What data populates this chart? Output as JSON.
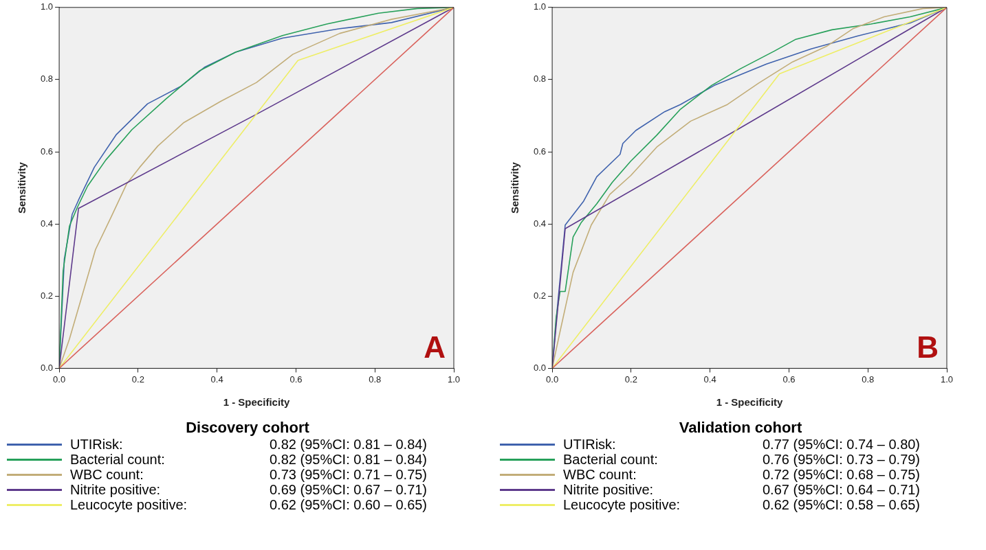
{
  "chart_data": [
    {
      "type": "line",
      "title": "A",
      "xlabel": "1 - Specificity",
      "ylabel": "Sensitivity",
      "legend_title": "Discovery cohort",
      "legend": "bottom",
      "grid": false,
      "marker": "none",
      "xlim": [
        0,
        1
      ],
      "ylim": [
        0,
        1
      ],
      "xticks": [
        {
          "value": 0,
          "label": "0.0"
        },
        {
          "value": 0.2,
          "label": "0.2"
        },
        {
          "value": 0.4,
          "label": "0.4"
        },
        {
          "value": 0.6,
          "label": "0.6"
        },
        {
          "value": 0.8,
          "label": "0.8"
        },
        {
          "value": 1,
          "label": "1.0"
        }
      ],
      "yticks": [
        {
          "value": 0,
          "label": "0.0"
        },
        {
          "value": 0.2,
          "label": "0.2"
        },
        {
          "value": 0.4,
          "label": "0.4"
        },
        {
          "value": 0.6,
          "label": "0.6"
        },
        {
          "value": 0.8,
          "label": "0.8"
        },
        {
          "value": 1,
          "label": "1.0"
        }
      ],
      "annotations": [
        "0.82 (95%CI: 0.81 – 0.84)",
        "0.82 (95%CI: 0.81 – 0.84)",
        "0.73 (95%CI: 0.71 – 0.75)",
        "0.69 (95%CI: 0.67 – 0.71)",
        "0.62 (95%CI: 0.60 – 0.65)"
      ],
      "series": [
        {
          "name": "UTIRisk:",
          "color": "#3f62ad",
          "x": [
            0,
            0.013,
            0.033,
            0.049,
            0.089,
            0.145,
            0.224,
            0.309,
            0.368,
            0.447,
            0.566,
            0.711,
            0.842,
            1
          ],
          "values": [
            0,
            0.303,
            0.427,
            0.466,
            0.557,
            0.648,
            0.733,
            0.782,
            0.834,
            0.876,
            0.915,
            0.941,
            0.958,
            1
          ]
        },
        {
          "name": "Bacterial count:",
          "color": "#27a05a",
          "x": [
            0,
            0.01,
            0.026,
            0.046,
            0.072,
            0.118,
            0.184,
            0.27,
            0.355,
            0.447,
            0.566,
            0.678,
            0.809,
            0.908,
            1
          ],
          "values": [
            0,
            0.27,
            0.394,
            0.446,
            0.505,
            0.577,
            0.661,
            0.746,
            0.824,
            0.876,
            0.922,
            0.954,
            0.984,
            0.997,
            1
          ]
        },
        {
          "name": "WBC count:",
          "color": "#c2ad78",
          "x": [
            0,
            0.026,
            0.059,
            0.092,
            0.132,
            0.171,
            0.204,
            0.25,
            0.316,
            0.408,
            0.5,
            0.592,
            0.711,
            0.842,
            1
          ],
          "values": [
            0,
            0.081,
            0.205,
            0.329,
            0.42,
            0.511,
            0.557,
            0.616,
            0.681,
            0.739,
            0.792,
            0.87,
            0.928,
            0.967,
            1
          ]
        },
        {
          "name": "Nitrite positive:",
          "color": "#5e3a8c",
          "x": [
            0,
            0.049,
            0.5,
            1
          ],
          "values": [
            0,
            0.443,
            0.704,
            1
          ]
        },
        {
          "name": "Leucocyte positive:",
          "color": "#eeee66",
          "x": [
            0,
            0.605,
            1
          ],
          "values": [
            0,
            0.853,
            1
          ]
        },
        {
          "color": "#d9605a",
          "x": [
            0,
            1
          ],
          "values": [
            0,
            1
          ]
        }
      ]
    },
    {
      "type": "line",
      "title": "B",
      "xlabel": "1 - Specificity",
      "ylabel": "Sensitivity",
      "legend_title": "Validation cohort",
      "legend": "bottom",
      "grid": false,
      "marker": "none",
      "xlim": [
        0,
        1
      ],
      "ylim": [
        0,
        1
      ],
      "xticks": [
        {
          "value": 0,
          "label": "0.0"
        },
        {
          "value": 0.2,
          "label": "0.2"
        },
        {
          "value": 0.4,
          "label": "0.4"
        },
        {
          "value": 0.6,
          "label": "0.6"
        },
        {
          "value": 0.8,
          "label": "0.8"
        },
        {
          "value": 1,
          "label": "1.0"
        }
      ],
      "yticks": [
        {
          "value": 0,
          "label": "0.0"
        },
        {
          "value": 0.2,
          "label": "0.2"
        },
        {
          "value": 0.4,
          "label": "0.4"
        },
        {
          "value": 0.6,
          "label": "0.6"
        },
        {
          "value": 0.8,
          "label": "0.8"
        },
        {
          "value": 1,
          "label": "1.0"
        }
      ],
      "annotations": [
        "0.77 (95%CI: 0.74 – 0.80)",
        "0.76 (95%CI: 0.73 – 0.79)",
        "0.72 (95%CI: 0.68 – 0.75)",
        "0.67 (95%CI: 0.64 – 0.71)",
        "0.62 (95%CI: 0.58 – 0.65)"
      ],
      "series": [
        {
          "name": "UTIRisk:",
          "color": "#3f62ad",
          "x": [
            0,
            0.013,
            0.033,
            0.079,
            0.113,
            0.172,
            0.179,
            0.212,
            0.285,
            0.325,
            0.411,
            0.543,
            0.656,
            0.775,
            0.907,
            1
          ],
          "values": [
            0,
            0.167,
            0.397,
            0.462,
            0.531,
            0.593,
            0.623,
            0.659,
            0.711,
            0.731,
            0.784,
            0.843,
            0.885,
            0.921,
            0.957,
            1
          ]
        },
        {
          "name": "Bacterial count:",
          "color": "#27a05a",
          "x": [
            0,
            0.01,
            0.02,
            0.033,
            0.053,
            0.073,
            0.113,
            0.152,
            0.199,
            0.265,
            0.325,
            0.404,
            0.477,
            0.563,
            0.616,
            0.709,
            0.808,
            0.907,
            1
          ],
          "values": [
            0,
            0.141,
            0.213,
            0.213,
            0.364,
            0.403,
            0.456,
            0.515,
            0.574,
            0.646,
            0.718,
            0.784,
            0.83,
            0.879,
            0.911,
            0.938,
            0.954,
            0.974,
            1
          ]
        },
        {
          "name": "WBC count:",
          "color": "#c2ad78",
          "x": [
            0,
            0.02,
            0.053,
            0.099,
            0.146,
            0.199,
            0.265,
            0.351,
            0.444,
            0.523,
            0.609,
            0.695,
            0.762,
            0.841,
            0.94,
            1
          ],
          "values": [
            0,
            0.102,
            0.266,
            0.397,
            0.482,
            0.534,
            0.613,
            0.685,
            0.731,
            0.79,
            0.849,
            0.892,
            0.941,
            0.974,
            0.997,
            1
          ]
        },
        {
          "name": "Nitrite positive:",
          "color": "#5e3a8c",
          "x": [
            0,
            0.033,
            0.47,
            1
          ],
          "values": [
            0,
            0.387,
            0.662,
            1
          ]
        },
        {
          "name": "Leucocyte positive:",
          "color": "#eeee66",
          "x": [
            0,
            0.576,
            1
          ],
          "values": [
            0,
            0.816,
            1
          ]
        },
        {
          "color": "#d9605a",
          "x": [
            0,
            1
          ],
          "values": [
            0,
            1
          ]
        }
      ]
    }
  ]
}
